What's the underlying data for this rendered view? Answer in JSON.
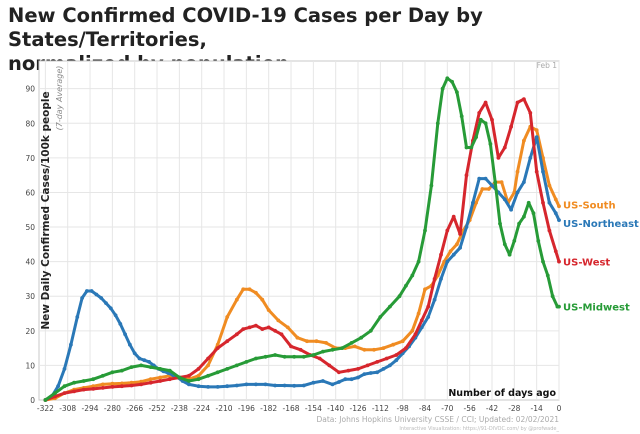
{
  "title_lines": [
    "New Confirmed COVID-19 Cases per Day by States/Territories,",
    "normalized by population"
  ],
  "chart_data": {
    "type": "line",
    "title": "New Confirmed COVID-19 Cases per Day by States/Territories, normalized by population",
    "ylabel": "New Daily Confirmed Cases/100k people",
    "ylabel_sub": "(7-day Average)",
    "xlabel": "Number of days ago",
    "date_marker": "Feb 1",
    "source": "Data: Johns Hopkins University CSSE / CCI; Updated: 02/02/2021",
    "credit": "Interactive Visualization: https://91-DIVOC.com/ by @profwade_",
    "xlim": [
      -326,
      0
    ],
    "ylim": [
      0,
      98
    ],
    "x_ticks": [
      -322,
      -308,
      -294,
      -280,
      -266,
      -252,
      -238,
      -224,
      -210,
      -196,
      -182,
      -168,
      -154,
      -140,
      -126,
      -112,
      -98,
      -84,
      -70,
      -56,
      -42,
      -28,
      -14,
      0
    ],
    "y_ticks": [
      0,
      10,
      20,
      30,
      40,
      50,
      60,
      70,
      80,
      90
    ],
    "grid": true,
    "series": [
      {
        "name": "US-South",
        "color": "#f08c22",
        "x": [
          -322,
          -316,
          -310,
          -304,
          -298,
          -292,
          -286,
          -280,
          -274,
          -268,
          -262,
          -256,
          -250,
          -244,
          -238,
          -232,
          -226,
          -220,
          -214,
          -208,
          -202,
          -198,
          -194,
          -190,
          -186,
          -182,
          -176,
          -170,
          -164,
          -158,
          -152,
          -146,
          -140,
          -134,
          -128,
          -122,
          -116,
          -110,
          -104,
          -98,
          -92,
          -88,
          -84,
          -80,
          -76,
          -72,
          -68,
          -64,
          -60,
          -56,
          -52,
          -48,
          -44,
          -40,
          -36,
          -32,
          -28,
          -26,
          -22,
          -18,
          -14,
          -10,
          -6,
          -2,
          0
        ],
        "values": [
          0,
          0.5,
          2,
          3,
          3.5,
          4,
          4.5,
          4.7,
          4.8,
          5,
          5.3,
          6,
          6.5,
          7,
          6.5,
          6,
          7,
          10,
          16,
          24,
          29,
          32,
          32,
          31,
          29,
          26,
          23,
          21,
          18,
          17,
          17,
          16.5,
          15,
          15,
          15.5,
          14.5,
          14.5,
          15,
          16,
          17,
          20,
          25,
          32,
          33,
          36,
          40,
          43,
          45,
          49,
          52,
          57,
          61,
          61,
          63,
          63,
          57,
          60,
          66,
          75,
          79,
          78,
          70,
          62,
          58,
          56
        ]
      },
      {
        "name": "US-Northeast",
        "color": "#2a78b7",
        "x": [
          -322,
          -318,
          -314,
          -310,
          -306,
          -302,
          -299,
          -296,
          -293,
          -290,
          -287,
          -284,
          -281,
          -278,
          -275,
          -272,
          -269,
          -266,
          -263,
          -260,
          -257,
          -254,
          -251,
          -248,
          -245,
          -242,
          -239,
          -236,
          -232,
          -226,
          -220,
          -214,
          -208,
          -202,
          -196,
          -190,
          -184,
          -178,
          -172,
          -166,
          -160,
          -154,
          -148,
          -142,
          -138,
          -134,
          -130,
          -126,
          -122,
          -118,
          -114,
          -110,
          -106,
          -102,
          -98,
          -94,
          -90,
          -86,
          -82,
          -78,
          -74,
          -70,
          -66,
          -62,
          -58,
          -54,
          -50,
          -46,
          -42,
          -38,
          -34,
          -30,
          -26,
          -22,
          -18,
          -14,
          -10,
          -6,
          -2,
          0
        ],
        "values": [
          0,
          1,
          4,
          9,
          16,
          24,
          29.5,
          31.5,
          31.5,
          30.5,
          29.5,
          28,
          26.5,
          24.5,
          22,
          19,
          16,
          13.5,
          12,
          11.5,
          11,
          10,
          9,
          8.3,
          7.8,
          7.2,
          6.5,
          5.5,
          4.5,
          4,
          3.8,
          3.8,
          4,
          4.2,
          4.5,
          4.5,
          4.5,
          4.2,
          4.2,
          4.1,
          4.2,
          5,
          5.5,
          4.5,
          5.2,
          6,
          6,
          6.5,
          7.5,
          7.8,
          8,
          9,
          10,
          11.5,
          13.5,
          15.5,
          18,
          21,
          24,
          29,
          35,
          40,
          42,
          44,
          50,
          57,
          64,
          64,
          62,
          60,
          58,
          55,
          60,
          63,
          70,
          76,
          66,
          57,
          54,
          52
        ]
      },
      {
        "name": "US-West",
        "color": "#d6262d",
        "x": [
          -322,
          -316,
          -310,
          -304,
          -298,
          -292,
          -286,
          -280,
          -274,
          -268,
          -262,
          -256,
          -250,
          -244,
          -238,
          -232,
          -226,
          -220,
          -214,
          -208,
          -202,
          -198,
          -194,
          -190,
          -186,
          -182,
          -178,
          -174,
          -168,
          -162,
          -156,
          -150,
          -144,
          -138,
          -132,
          -126,
          -120,
          -114,
          -108,
          -102,
          -96,
          -90,
          -86,
          -82,
          -78,
          -74,
          -70,
          -66,
          -62,
          -58,
          -54,
          -50,
          -46,
          -42,
          -38,
          -34,
          -30,
          -26,
          -22,
          -18,
          -14,
          -10,
          -6,
          -2,
          0
        ],
        "values": [
          0,
          1,
          2,
          2.5,
          3,
          3.2,
          3.5,
          3.8,
          4,
          4.2,
          4.5,
          5,
          5.5,
          6,
          6.5,
          7,
          9,
          12,
          15,
          17,
          19,
          20.5,
          21,
          21.5,
          20.5,
          21,
          20,
          19,
          15.5,
          14.5,
          13,
          12,
          10,
          8,
          8.5,
          9,
          10,
          11,
          12,
          13,
          15,
          19,
          23,
          27,
          35,
          42,
          49,
          53,
          48,
          65,
          75,
          83,
          86,
          81,
          70,
          73,
          79,
          86,
          87,
          83,
          66,
          57,
          49,
          43,
          40
        ]
      },
      {
        "name": "US-Midwest",
        "color": "#279b37",
        "x": [
          -322,
          -316,
          -310,
          -304,
          -298,
          -292,
          -286,
          -280,
          -274,
          -268,
          -262,
          -256,
          -250,
          -244,
          -238,
          -232,
          -226,
          -220,
          -214,
          -208,
          -202,
          -196,
          -190,
          -184,
          -178,
          -172,
          -166,
          -160,
          -154,
          -148,
          -142,
          -136,
          -130,
          -124,
          -118,
          -112,
          -106,
          -100,
          -96,
          -92,
          -88,
          -84,
          -80,
          -76,
          -73,
          -70,
          -67,
          -64,
          -61,
          -58,
          -55,
          -52,
          -49,
          -46,
          -43,
          -40,
          -37,
          -34,
          -31,
          -28,
          -25,
          -22,
          -19,
          -16,
          -13,
          -10,
          -7,
          -4,
          -1,
          0
        ],
        "values": [
          0,
          2,
          4,
          5,
          5.5,
          6,
          7,
          8,
          8.5,
          9.5,
          10,
          9.5,
          9,
          8.5,
          6.5,
          5.5,
          6,
          7,
          8,
          9,
          10,
          11,
          12,
          12.5,
          13,
          12.5,
          12.5,
          12.5,
          13,
          14,
          14.5,
          15,
          16.5,
          18,
          20,
          24,
          27,
          30,
          33,
          36,
          40,
          49,
          62,
          80,
          90,
          93,
          92,
          89,
          82,
          73,
          73,
          76,
          81,
          80,
          74,
          63,
          51,
          45,
          42,
          46,
          51,
          53,
          57,
          54,
          46,
          40,
          36,
          30,
          27,
          27
        ]
      }
    ]
  }
}
